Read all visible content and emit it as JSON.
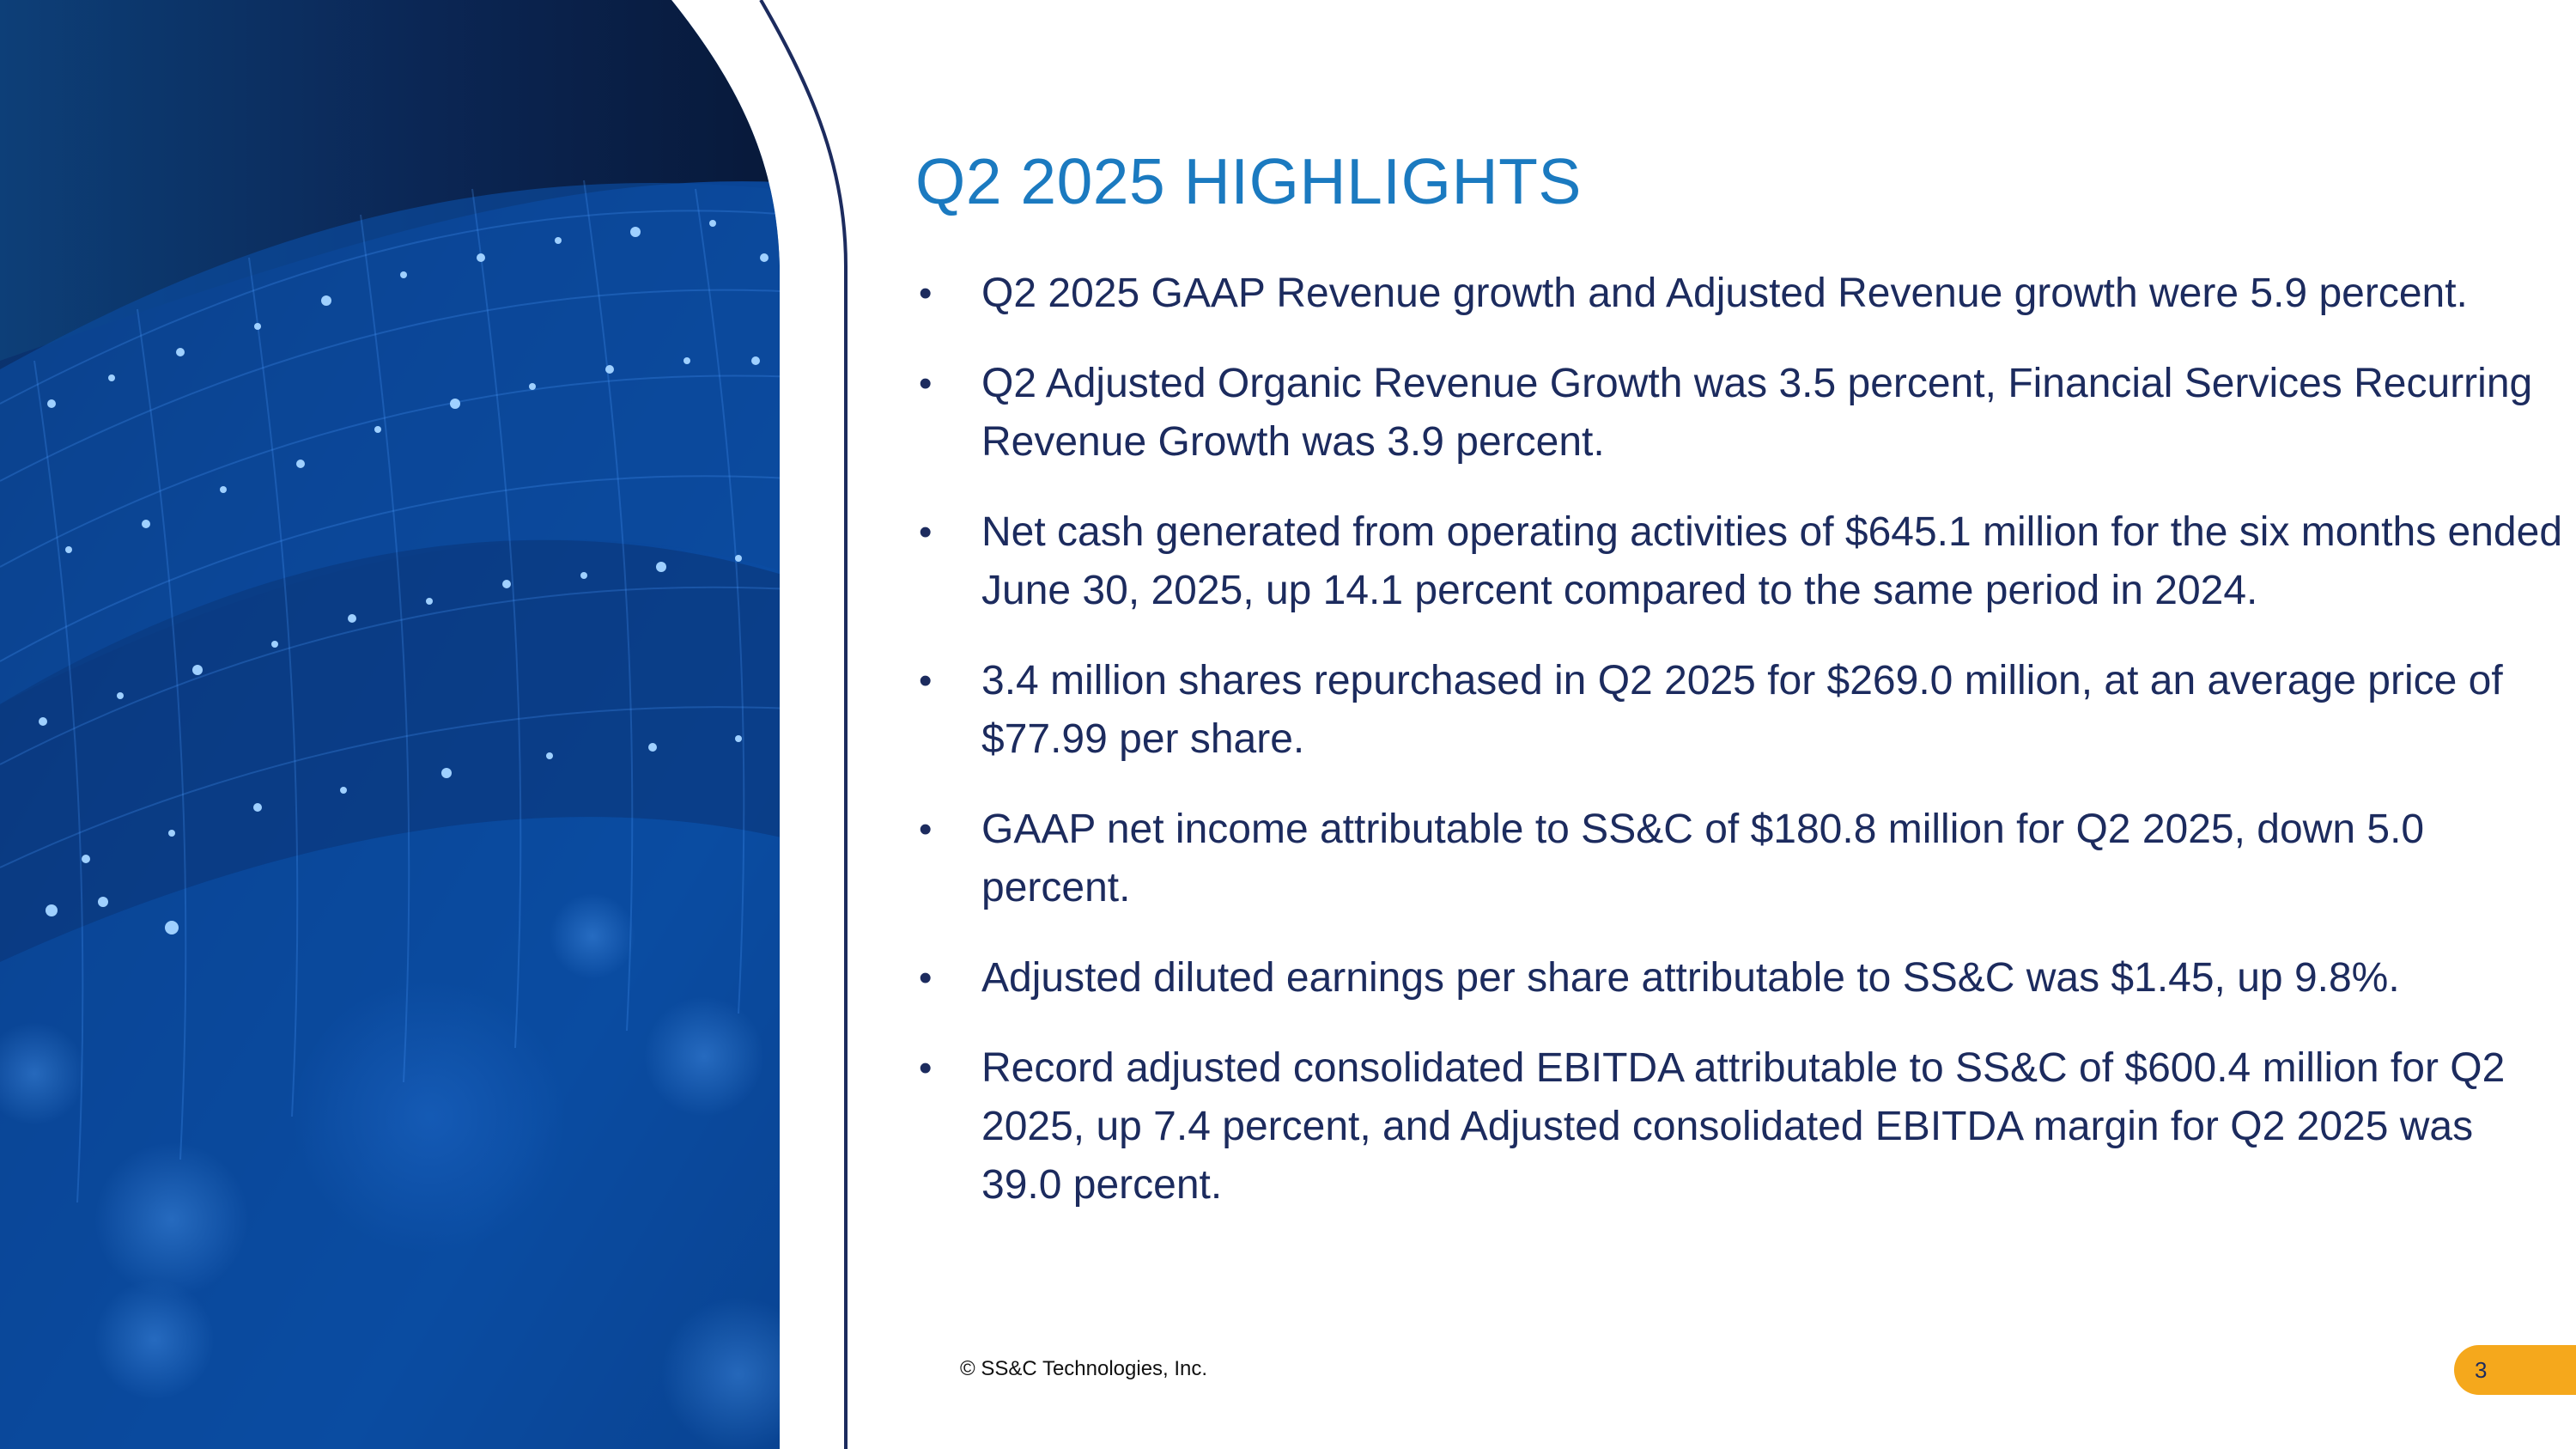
{
  "slide": {
    "title": "Q2 2025 HIGHLIGHTS",
    "bullet_glyph": "•",
    "bullets": [
      "Q2 2025 GAAP Revenue growth and Adjusted Revenue growth were 5.9 percent.",
      "Q2 Adjusted Organic Revenue Growth was 3.5 percent, Financial Services Recurring Revenue Growth was 3.9 percent.",
      "Net cash generated from operating activities of $645.1 million for the six months ended June 30, 2025, up 14.1 percent compared to the same period in 2024.",
      "3.4 million shares repurchased in Q2 2025 for $269.0 million, at an average price of $77.99 per share.",
      "GAAP net income attributable to SS&C of $180.8 million for Q2 2025, down 5.0 percent.",
      "Adjusted diluted earnings per share attributable to SS&C was $1.45, up 9.8%.",
      "Record adjusted consolidated EBITDA attributable to SS&C of $600.4 million for Q2 2025, up 7.4 percent, and Adjusted consolidated EBITDA margin for Q2 2025 was 39.0 percent."
    ],
    "footer": {
      "copyright": "© SS&C Technologies, Inc.",
      "page_number": "3"
    }
  },
  "colors": {
    "title": "#1b7ac0",
    "body_text": "#1c2b5e",
    "accent_tab": "#f5a81c",
    "panel_dark": "#0a1a3d",
    "panel_blue": "#0d55b0"
  }
}
